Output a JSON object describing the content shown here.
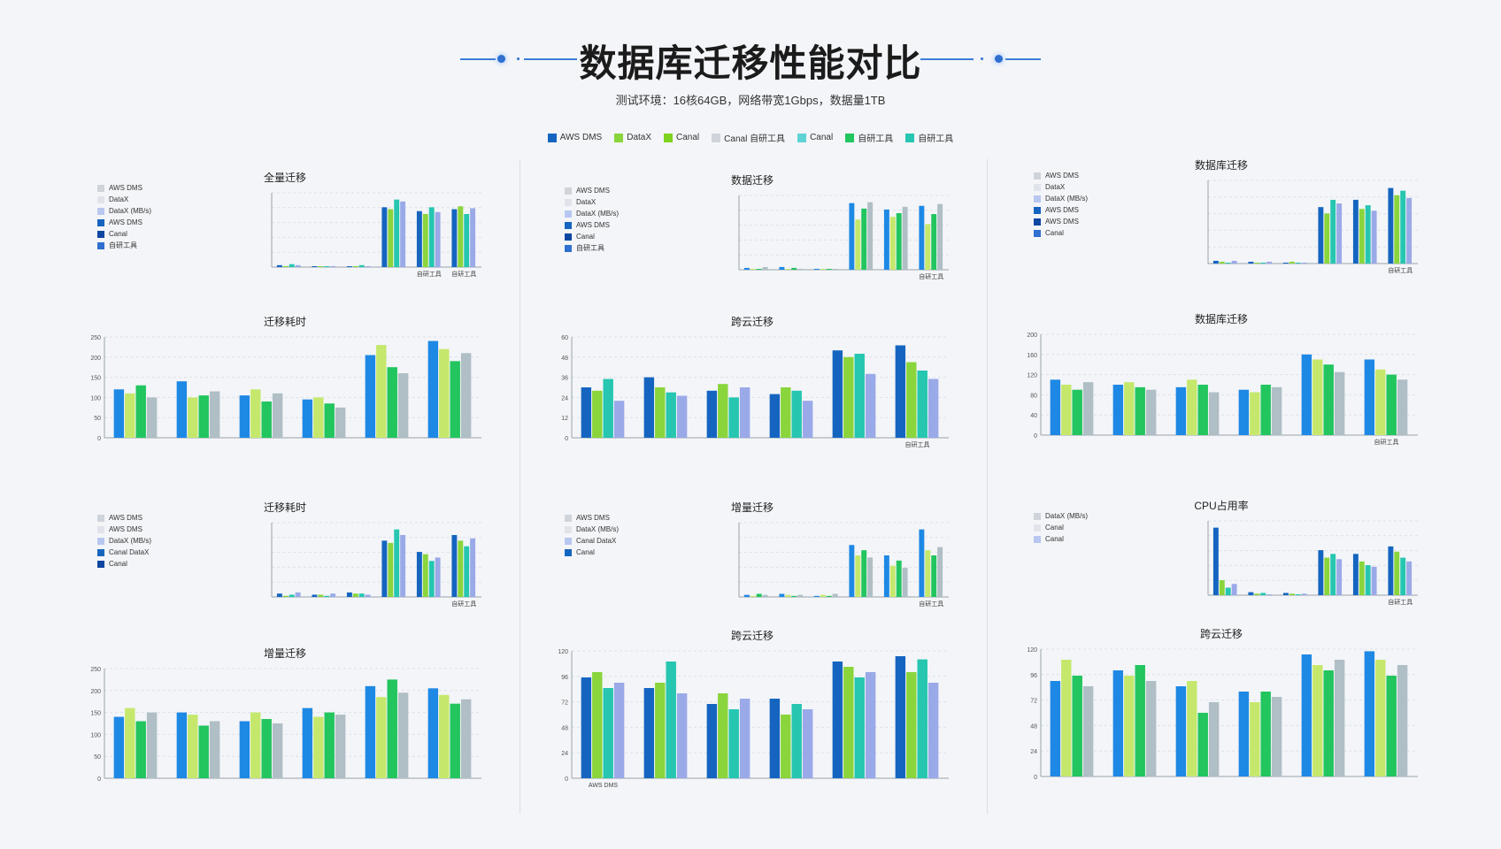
{
  "page": {
    "title": "数据库迁移性能对比",
    "subtitle": "测试环境：16核64GB，网络带宽1Gbps，数据量1TB"
  },
  "colors": {
    "aws_dms": "#1565c0",
    "datax": "#8ad53c",
    "canal": "#7ed321",
    "canal_light": "#cfd4da",
    "cyan": "#5fd3d3",
    "green": "#22c55e",
    "teal": "#26c6b0",
    "accent_blue": "#2f6fd0"
  },
  "legend": [
    {
      "label": "AWS DMS",
      "color": "#1565c0"
    },
    {
      "label": "DataX",
      "color": "#8ad53c"
    },
    {
      "label": "Canal",
      "color": "#7ed321"
    },
    {
      "label": "Canal 自研工具",
      "color": "#cfd4da"
    },
    {
      "label": "Canal",
      "color": "#5fd3d3"
    },
    {
      "label": "自研工具",
      "color": "#22c55e"
    },
    {
      "label": "自研工具",
      "color": "#26c6b0"
    }
  ],
  "panels": [
    {
      "title": "全量迁移",
      "mini_legend": [
        "AWS DMS",
        "DataX",
        "DataX (MB/s)",
        "AWS DMS",
        "Canal",
        "自研工具"
      ],
      "note": ""
    },
    {
      "title": "数据迁移",
      "mini_legend": [
        "AWS DMS",
        "DataX",
        "DataX (MB/s)",
        "AWS DMS",
        "Canal",
        "自研工具"
      ],
      "note": ""
    },
    {
      "title": "数据库迁移",
      "mini_legend": [
        "AWS DMS",
        "DataX",
        "DataX (MB/s)",
        "AWS DMS",
        "AWS DMS",
        "Canal"
      ],
      "note": ""
    },
    {
      "title": "迁移耗时",
      "mini_legend": [],
      "note": ""
    },
    {
      "title": "跨云迁移",
      "mini_legend": [],
      "note": ""
    },
    {
      "title": "数据库迁移",
      "mini_legend": [],
      "note": ""
    },
    {
      "title": "迁移耗时",
      "mini_legend": [
        "AWS DMS",
        "AWS DMS",
        "DataX (MB/s)",
        "Canal DataX",
        "Canal"
      ],
      "note": ""
    },
    {
      "title": "增量迁移",
      "mini_legend": [
        "AWS DMS",
        "DataX (MB/s)",
        "Canal DataX",
        "Canal"
      ],
      "note": ""
    },
    {
      "title": "CPU占用率",
      "mini_legend": [
        "DataX (MB/s)",
        "Canal",
        "Canal"
      ],
      "note": ""
    },
    {
      "title": "增量迁移",
      "mini_legend": [],
      "note": ""
    },
    {
      "title": "跨云迁移",
      "mini_legend": [],
      "note": ""
    },
    {
      "title": "跨云迁移",
      "mini_legend": [],
      "note": ""
    }
  ],
  "chart_data": [
    {
      "type": "bar",
      "title": "全量迁移",
      "categories": [
        "",
        "",
        "",
        "",
        "自研工具",
        "自研工具"
      ],
      "series": [
        {
          "name": "AWS DMS",
          "values": [
            2,
            0,
            0,
            62,
            58,
            60
          ]
        },
        {
          "name": "DataX",
          "values": [
            1,
            0,
            1,
            60,
            55,
            63
          ]
        },
        {
          "name": "Canal",
          "values": [
            3,
            0,
            2,
            70,
            62,
            55
          ]
        },
        {
          "name": "自研工具",
          "values": [
            2,
            1,
            0,
            68,
            57,
            61
          ]
        }
      ]
    },
    {
      "type": "bar",
      "title": "数据迁移",
      "categories": [
        "",
        "",
        "",
        "",
        "",
        "自研工具"
      ],
      "series": [
        {
          "name": "AWS DMS",
          "values": [
            2,
            3,
            1,
            73,
            66,
            70
          ]
        },
        {
          "name": "DataX",
          "values": [
            1,
            0,
            0,
            55,
            58,
            50
          ]
        },
        {
          "name": "Canal",
          "values": [
            0,
            2,
            1,
            67,
            62,
            61
          ]
        },
        {
          "name": "自研工具",
          "values": [
            3,
            1,
            0,
            74,
            69,
            72
          ]
        }
      ]
    },
    {
      "type": "bar",
      "title": "数据库迁移",
      "categories": [
        "",
        "",
        "",
        "",
        "",
        "自研工具"
      ],
      "series": [
        {
          "name": "AWS DMS",
          "values": [
            3,
            2,
            1,
            62,
            70,
            83
          ]
        },
        {
          "name": "DataX",
          "values": [
            2,
            1,
            2,
            55,
            60,
            75
          ]
        },
        {
          "name": "Canal",
          "values": [
            1,
            0,
            0,
            70,
            64,
            80
          ]
        },
        {
          "name": "自研工具",
          "values": [
            3,
            2,
            1,
            66,
            58,
            72
          ]
        }
      ]
    },
    {
      "type": "bar",
      "title": "迁移耗时",
      "ylim": [
        0,
        250
      ],
      "categories": [
        "",
        "",
        "",
        "",
        "",
        ""
      ],
      "series": [
        {
          "name": "AWS DMS",
          "values": [
            120,
            140,
            105,
            95,
            205,
            240
          ]
        },
        {
          "name": "DataX",
          "values": [
            110,
            100,
            120,
            100,
            230,
            220
          ]
        },
        {
          "name": "Canal",
          "values": [
            130,
            105,
            90,
            85,
            175,
            190
          ]
        },
        {
          "name": "自研工具",
          "values": [
            100,
            115,
            110,
            75,
            160,
            210
          ]
        }
      ]
    },
    {
      "type": "bar",
      "title": "跨云迁移",
      "ylim": [
        0,
        60
      ],
      "categories": [
        "",
        "",
        "",
        "",
        "",
        "自研工具"
      ],
      "series": [
        {
          "name": "AWS DMS",
          "values": [
            30,
            36,
            28,
            26,
            52,
            55
          ]
        },
        {
          "name": "DataX",
          "values": [
            28,
            30,
            32,
            30,
            48,
            45
          ]
        },
        {
          "name": "Canal",
          "values": [
            35,
            27,
            24,
            28,
            50,
            40
          ]
        },
        {
          "name": "自研工具",
          "values": [
            22,
            25,
            30,
            22,
            38,
            35
          ]
        }
      ]
    },
    {
      "type": "bar",
      "title": "数据库迁移",
      "ylim": [
        0,
        200
      ],
      "categories": [
        "",
        "",
        "",
        "",
        "",
        "自研工具"
      ],
      "series": [
        {
          "name": "AWS DMS",
          "values": [
            110,
            100,
            95,
            90,
            160,
            150
          ]
        },
        {
          "name": "DataX",
          "values": [
            100,
            105,
            110,
            85,
            150,
            130
          ]
        },
        {
          "name": "Canal",
          "values": [
            90,
            95,
            100,
            100,
            140,
            120
          ]
        },
        {
          "name": "自研工具",
          "values": [
            105,
            90,
            85,
            95,
            125,
            110
          ]
        }
      ]
    },
    {
      "type": "bar",
      "title": "迁移耗时",
      "categories": [
        "",
        "",
        "",
        "",
        "",
        "自研工具"
      ],
      "series": [
        {
          "name": "AWS DMS",
          "values": [
            3,
            2,
            4,
            50,
            40,
            55
          ]
        },
        {
          "name": "DataX",
          "values": [
            1,
            2,
            3,
            48,
            38,
            50
          ]
        },
        {
          "name": "Canal",
          "values": [
            2,
            1,
            3,
            60,
            32,
            45
          ]
        },
        {
          "name": "自研工具",
          "values": [
            4,
            3,
            2,
            55,
            35,
            52
          ]
        }
      ]
    },
    {
      "type": "bar",
      "title": "增量迁移",
      "categories": [
        "",
        "",
        "",
        "",
        "",
        "自研工具"
      ],
      "series": [
        {
          "name": "AWS DMS",
          "values": [
            2,
            3,
            1,
            50,
            40,
            65
          ]
        },
        {
          "name": "DataX",
          "values": [
            1,
            2,
            2,
            40,
            30,
            45
          ]
        },
        {
          "name": "Canal",
          "values": [
            3,
            1,
            1,
            45,
            35,
            40
          ]
        },
        {
          "name": "自研工具",
          "values": [
            2,
            2,
            3,
            38,
            28,
            48
          ]
        }
      ]
    },
    {
      "type": "bar",
      "title": "CPU占用率",
      "categories": [
        "",
        "",
        "",
        "",
        "",
        "自研工具"
      ],
      "series": [
        {
          "name": "AWS DMS",
          "values": [
            90,
            4,
            3,
            60,
            55,
            65
          ]
        },
        {
          "name": "DataX",
          "values": [
            20,
            2,
            2,
            50,
            45,
            58
          ]
        },
        {
          "name": "Canal",
          "values": [
            10,
            3,
            1,
            55,
            40,
            50
          ]
        },
        {
          "name": "自研工具",
          "values": [
            15,
            1,
            2,
            48,
            38,
            45
          ]
        }
      ]
    },
    {
      "type": "bar",
      "title": "增量迁移",
      "ylim": [
        0,
        250
      ],
      "categories": [
        "",
        "",
        "",
        "",
        "",
        ""
      ],
      "series": [
        {
          "name": "AWS DMS",
          "values": [
            140,
            150,
            130,
            160,
            210,
            205
          ]
        },
        {
          "name": "DataX",
          "values": [
            160,
            145,
            150,
            140,
            185,
            190
          ]
        },
        {
          "name": "Canal",
          "values": [
            130,
            120,
            135,
            150,
            225,
            170
          ]
        },
        {
          "name": "自研工具",
          "values": [
            150,
            130,
            125,
            145,
            195,
            180
          ]
        }
      ]
    },
    {
      "type": "bar",
      "title": "跨云迁移",
      "ylim": [
        0,
        120
      ],
      "categories": [
        "AWS DMS",
        "",
        "",
        "",
        "",
        ""
      ],
      "series": [
        {
          "name": "AWS DMS",
          "values": [
            95,
            85,
            70,
            75,
            110,
            115
          ]
        },
        {
          "name": "DataX",
          "values": [
            100,
            90,
            80,
            60,
            105,
            100
          ]
        },
        {
          "name": "Canal",
          "values": [
            85,
            110,
            65,
            70,
            95,
            112
          ]
        },
        {
          "name": "自研工具",
          "values": [
            90,
            80,
            75,
            65,
            100,
            90
          ]
        }
      ]
    },
    {
      "type": "bar",
      "title": "跨云迁移",
      "ylim": [
        0,
        120
      ],
      "categories": [
        "",
        "",
        "",
        "",
        "",
        ""
      ],
      "series": [
        {
          "name": "AWS DMS",
          "values": [
            90,
            100,
            85,
            80,
            115,
            118
          ]
        },
        {
          "name": "DataX",
          "values": [
            110,
            95,
            90,
            70,
            105,
            110
          ]
        },
        {
          "name": "Canal",
          "values": [
            95,
            105,
            60,
            80,
            100,
            95
          ]
        },
        {
          "name": "自研工具",
          "values": [
            85,
            90,
            70,
            75,
            110,
            105
          ]
        }
      ]
    }
  ]
}
